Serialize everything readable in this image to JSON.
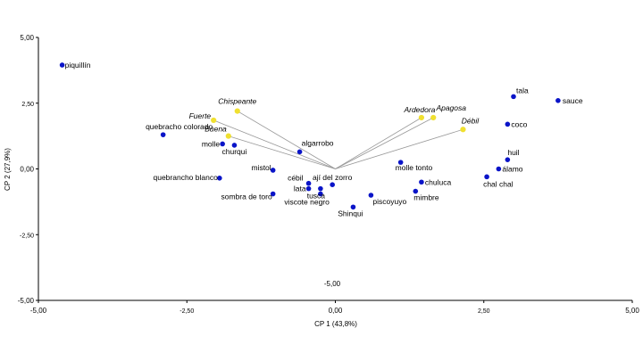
{
  "chart_data": {
    "type": "scatter",
    "title": "",
    "xlabel": "CP 1 (43,8%)",
    "ylabel": "CP 2 (27,9%)",
    "xlim": [
      -5,
      5
    ],
    "ylim": [
      -5,
      5
    ],
    "x_ticks": [
      "-5,00",
      "-2,50",
      "0,00",
      "2,50",
      "5,00"
    ],
    "y_ticks": [
      "5,00",
      "2,50",
      "0,00",
      "-2,50",
      "-5,00"
    ],
    "center_annotation": "-5,00",
    "colors": {
      "points": "#0a14c8",
      "vectors": "#f0e030",
      "vector_lines": "#999999",
      "axes": "#000000"
    },
    "series": [
      {
        "points": [
          {
            "label": "piquillín",
            "x": -4.6,
            "y": 3.95
          },
          {
            "label": "quebracho colorado",
            "x": -2.9,
            "y": 1.3
          },
          {
            "label": "molle",
            "x": -1.9,
            "y": 0.95
          },
          {
            "label": "churqui",
            "x": -1.7,
            "y": 0.9
          },
          {
            "label": "algarrobo",
            "x": -0.6,
            "y": 0.65
          },
          {
            "label": "mistol",
            "x": -1.05,
            "y": -0.05
          },
          {
            "label": "quebrancho blanco",
            "x": -1.95,
            "y": -0.35
          },
          {
            "label": "cébil",
            "x": -0.45,
            "y": -0.55
          },
          {
            "label": "ají del zorro",
            "x": -0.05,
            "y": -0.6
          },
          {
            "label": "lata",
            "x": -0.45,
            "y": -0.75
          },
          {
            "label": "sombra de toro",
            "x": -1.05,
            "y": -0.95
          },
          {
            "label": "viscote negro",
            "x": -0.25,
            "y": -0.95
          },
          {
            "label": "tusca",
            "x": -0.25,
            "y": -0.75
          },
          {
            "label": "Shinqui",
            "x": 0.3,
            "y": -1.45
          },
          {
            "label": "piscoyuyo",
            "x": 0.6,
            "y": -1.0
          },
          {
            "label": "mimbre",
            "x": 1.35,
            "y": -0.85
          },
          {
            "label": "chuluca",
            "x": 1.45,
            "y": -0.5
          },
          {
            "label": "molle tonto",
            "x": 1.1,
            "y": 0.25
          },
          {
            "label": "huil",
            "x": 2.9,
            "y": 0.35
          },
          {
            "label": "álamo",
            "x": 2.75,
            "y": 0.0
          },
          {
            "label": "chal chal",
            "x": 2.55,
            "y": -0.3
          },
          {
            "label": "tala",
            "x": 3.0,
            "y": 2.75
          },
          {
            "label": "sauce",
            "x": 3.75,
            "y": 2.6
          },
          {
            "label": "coco",
            "x": 2.9,
            "y": 1.7
          }
        ]
      }
    ],
    "vectors": [
      {
        "label": "Chispeante",
        "x": -1.65,
        "y": 2.2
      },
      {
        "label": "Fuerte",
        "x": -2.05,
        "y": 1.85
      },
      {
        "label": "Buena",
        "x": -1.8,
        "y": 1.25
      },
      {
        "label": "Ardedora",
        "x": 1.45,
        "y": 1.95
      },
      {
        "label": "Apagosa",
        "x": 1.65,
        "y": 1.95
      },
      {
        "label": "Débil",
        "x": 2.15,
        "y": 1.5
      }
    ]
  }
}
